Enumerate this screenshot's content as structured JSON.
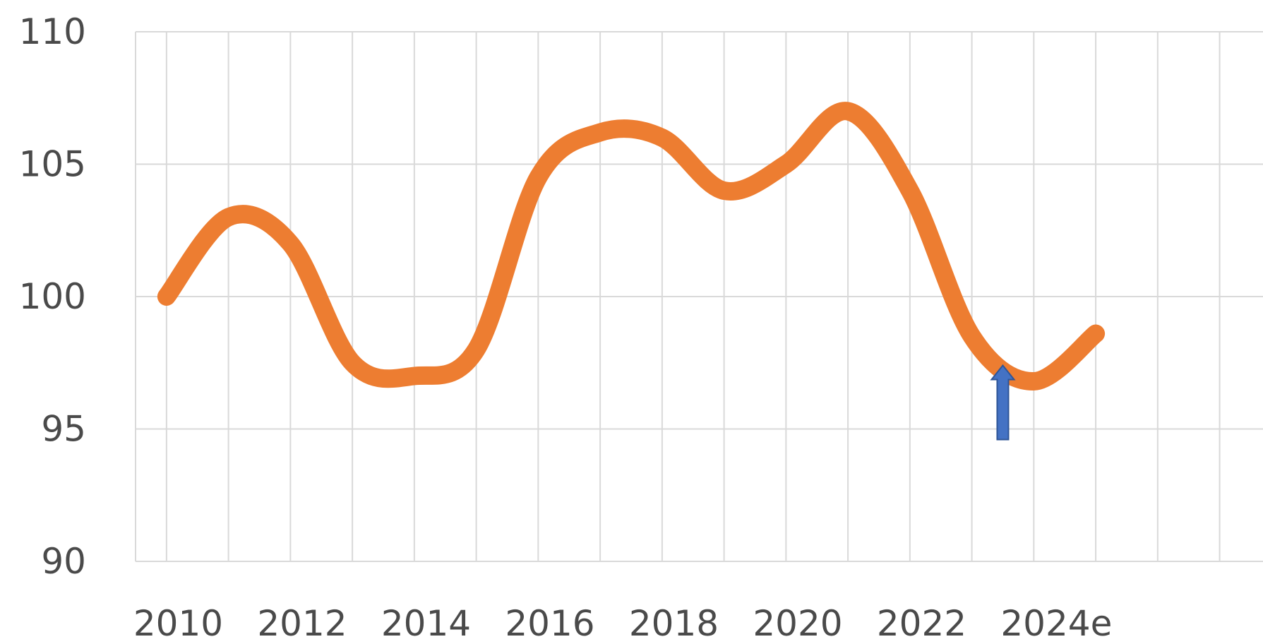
{
  "chart_data": {
    "type": "line",
    "title": "",
    "xlabel": "",
    "ylabel": "",
    "x_tick_labels": [
      "2010",
      "2012",
      "2014",
      "2016",
      "2018",
      "2020",
      "2022",
      "2024e"
    ],
    "y_tick_labels": [
      "110",
      "105",
      "100",
      "95",
      "90"
    ],
    "ylim": [
      90,
      110
    ],
    "grid": true,
    "legend": "none",
    "series": [
      {
        "color": "#ED7D31",
        "points": [
          {
            "x": 2010,
            "y": 100.0
          },
          {
            "x": 2011,
            "y": 103.0
          },
          {
            "x": 2012,
            "y": 102.0
          },
          {
            "x": 2013,
            "y": 97.5
          },
          {
            "x": 2014,
            "y": 97.0
          },
          {
            "x": 2015,
            "y": 98.0
          },
          {
            "x": 2016,
            "y": 104.5
          },
          {
            "x": 2017,
            "y": 106.2
          },
          {
            "x": 2018,
            "y": 106.0
          },
          {
            "x": 2019,
            "y": 104.0
          },
          {
            "x": 2020,
            "y": 105.0
          },
          {
            "x": 2021,
            "y": 107.0
          },
          {
            "x": 2022,
            "y": 104.0
          },
          {
            "x": 2023,
            "y": 98.5
          },
          {
            "x": 2024,
            "y": 96.8
          },
          {
            "x": 2025,
            "y": 98.6
          }
        ]
      }
    ],
    "annotation": {
      "type": "arrow-up",
      "color": "#4472C4",
      "x": 2023.5,
      "y_from": 94.6,
      "y_to": 97.4
    }
  }
}
